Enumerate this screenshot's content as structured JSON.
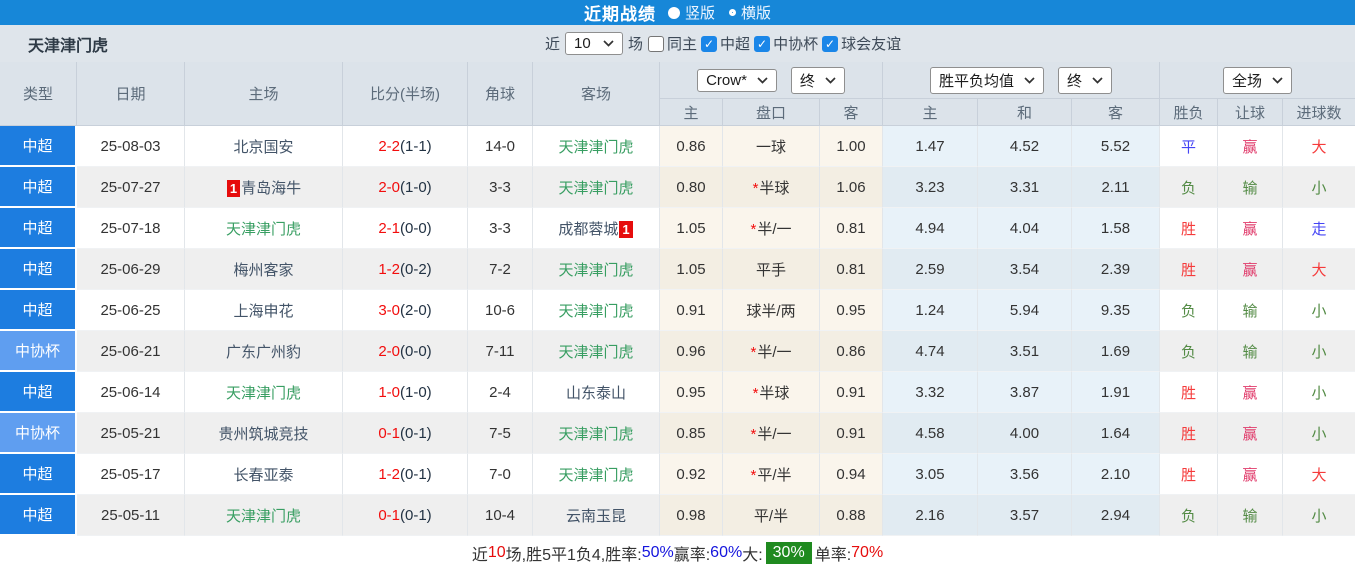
{
  "topbar": {
    "title": "近期战绩",
    "radios": [
      {
        "label": "竖版",
        "selected": true
      },
      {
        "label": "横版",
        "selected": false
      }
    ]
  },
  "filterbar": {
    "team_name": "天津津门虎",
    "recent_prefix": "近",
    "recent_value": "10",
    "recent_suffix": "场",
    "checkboxes": [
      {
        "label": "同主",
        "checked": false
      },
      {
        "label": "中超",
        "checked": true
      },
      {
        "label": "中协杯",
        "checked": true
      },
      {
        "label": "球会友谊",
        "checked": true
      }
    ]
  },
  "colors": {
    "topbar_blue": "#1787d8",
    "super_league_blue": "#1d7de0",
    "cup_blue": "#5f9ef0",
    "team_green": "#389e62",
    "score_red": "#f20d0d",
    "win_red": "#f53b3b",
    "win_crimson": "#e03a6a",
    "lose_green": "#538b45",
    "draw_blue": "#4545f5",
    "badge_green": "#1f8a1f"
  },
  "table": {
    "left_headers": [
      "类型",
      "日期",
      "主场",
      "比分(半场)",
      "角球",
      "客场"
    ],
    "odds_group": {
      "select1": "Crow*",
      "select2": "终",
      "subheaders": [
        "主",
        "盘口",
        "客"
      ]
    },
    "avg_group": {
      "select1": "胜平负均值",
      "select2": "终",
      "subheaders": [
        "主",
        "和",
        "客"
      ]
    },
    "result_group": {
      "select1": "全场",
      "subheaders": [
        "胜负",
        "让球",
        "进球数"
      ]
    },
    "rows": [
      {
        "type": "中超",
        "cup": false,
        "date": "25-08-03",
        "home": {
          "name": "北京国安",
          "green": false,
          "badge": null,
          "badge_pos": null
        },
        "score_ft": "2-2",
        "score_ht": "(1-1)",
        "corner": "14-0",
        "away": {
          "name": "天津津门虎",
          "green": true,
          "badge": null,
          "badge_pos": null
        },
        "odds_home": "0.86",
        "handicap": {
          "star": false,
          "text": "一球"
        },
        "odds_away": "1.00",
        "avg": [
          "1.47",
          "4.52",
          "5.52"
        ],
        "results": [
          {
            "text": "平",
            "color": "blue"
          },
          {
            "text": "赢",
            "color": "crimson"
          },
          {
            "text": "大",
            "color": "red"
          }
        ]
      },
      {
        "type": "中超",
        "cup": false,
        "date": "25-07-27",
        "home": {
          "name": "青岛海牛",
          "green": false,
          "badge": "1",
          "badge_pos": "left"
        },
        "score_ft": "2-0",
        "score_ht": "(1-0)",
        "corner": "3-3",
        "away": {
          "name": "天津津门虎",
          "green": true,
          "badge": null,
          "badge_pos": null
        },
        "odds_home": "0.80",
        "handicap": {
          "star": true,
          "text": "半球"
        },
        "odds_away": "1.06",
        "avg": [
          "3.23",
          "3.31",
          "2.11"
        ],
        "results": [
          {
            "text": "负",
            "color": "green"
          },
          {
            "text": "输",
            "color": "green"
          },
          {
            "text": "小",
            "color": "green"
          }
        ]
      },
      {
        "type": "中超",
        "cup": false,
        "date": "25-07-18",
        "home": {
          "name": "天津津门虎",
          "green": true,
          "badge": null,
          "badge_pos": null
        },
        "score_ft": "2-1",
        "score_ht": "(0-0)",
        "corner": "3-3",
        "away": {
          "name": "成都蓉城",
          "green": false,
          "badge": "1",
          "badge_pos": "right"
        },
        "odds_home": "1.05",
        "handicap": {
          "star": true,
          "text": "半/一"
        },
        "odds_away": "0.81",
        "avg": [
          "4.94",
          "4.04",
          "1.58"
        ],
        "results": [
          {
            "text": "胜",
            "color": "red"
          },
          {
            "text": "赢",
            "color": "crimson"
          },
          {
            "text": "走",
            "color": "blue"
          }
        ]
      },
      {
        "type": "中超",
        "cup": false,
        "date": "25-06-29",
        "home": {
          "name": "梅州客家",
          "green": false,
          "badge": null,
          "badge_pos": null
        },
        "score_ft": "1-2",
        "score_ht": "(0-2)",
        "corner": "7-2",
        "away": {
          "name": "天津津门虎",
          "green": true,
          "badge": null,
          "badge_pos": null
        },
        "odds_home": "1.05",
        "handicap": {
          "star": false,
          "text": "平手"
        },
        "odds_away": "0.81",
        "avg": [
          "2.59",
          "3.54",
          "2.39"
        ],
        "results": [
          {
            "text": "胜",
            "color": "red"
          },
          {
            "text": "赢",
            "color": "crimson"
          },
          {
            "text": "大",
            "color": "red"
          }
        ]
      },
      {
        "type": "中超",
        "cup": false,
        "date": "25-06-25",
        "home": {
          "name": "上海申花",
          "green": false,
          "badge": null,
          "badge_pos": null
        },
        "score_ft": "3-0",
        "score_ht": "(2-0)",
        "corner": "10-6",
        "away": {
          "name": "天津津门虎",
          "green": true,
          "badge": null,
          "badge_pos": null
        },
        "odds_home": "0.91",
        "handicap": {
          "star": false,
          "text": "球半/两"
        },
        "odds_away": "0.95",
        "avg": [
          "1.24",
          "5.94",
          "9.35"
        ],
        "results": [
          {
            "text": "负",
            "color": "green"
          },
          {
            "text": "输",
            "color": "green"
          },
          {
            "text": "小",
            "color": "green"
          }
        ]
      },
      {
        "type": "中协杯",
        "cup": true,
        "date": "25-06-21",
        "home": {
          "name": "广东广州豹",
          "green": false,
          "badge": null,
          "badge_pos": null
        },
        "score_ft": "2-0",
        "score_ht": "(0-0)",
        "corner": "7-11",
        "away": {
          "name": "天津津门虎",
          "green": true,
          "badge": null,
          "badge_pos": null
        },
        "odds_home": "0.96",
        "handicap": {
          "star": true,
          "text": "半/一"
        },
        "odds_away": "0.86",
        "avg": [
          "4.74",
          "3.51",
          "1.69"
        ],
        "results": [
          {
            "text": "负",
            "color": "green"
          },
          {
            "text": "输",
            "color": "green"
          },
          {
            "text": "小",
            "color": "green"
          }
        ]
      },
      {
        "type": "中超",
        "cup": false,
        "date": "25-06-14",
        "home": {
          "name": "天津津门虎",
          "green": true,
          "badge": null,
          "badge_pos": null
        },
        "score_ft": "1-0",
        "score_ht": "(1-0)",
        "corner": "2-4",
        "away": {
          "name": "山东泰山",
          "green": false,
          "badge": null,
          "badge_pos": null
        },
        "odds_home": "0.95",
        "handicap": {
          "star": true,
          "text": "半球"
        },
        "odds_away": "0.91",
        "avg": [
          "3.32",
          "3.87",
          "1.91"
        ],
        "results": [
          {
            "text": "胜",
            "color": "red"
          },
          {
            "text": "赢",
            "color": "crimson"
          },
          {
            "text": "小",
            "color": "green"
          }
        ]
      },
      {
        "type": "中协杯",
        "cup": true,
        "date": "25-05-21",
        "home": {
          "name": "贵州筑城竞技",
          "green": false,
          "badge": null,
          "badge_pos": null
        },
        "score_ft": "0-1",
        "score_ht": "(0-1)",
        "corner": "7-5",
        "away": {
          "name": "天津津门虎",
          "green": true,
          "badge": null,
          "badge_pos": null
        },
        "odds_home": "0.85",
        "handicap": {
          "star": true,
          "text": "半/一"
        },
        "odds_away": "0.91",
        "avg": [
          "4.58",
          "4.00",
          "1.64"
        ],
        "results": [
          {
            "text": "胜",
            "color": "red"
          },
          {
            "text": "赢",
            "color": "crimson"
          },
          {
            "text": "小",
            "color": "green"
          }
        ]
      },
      {
        "type": "中超",
        "cup": false,
        "date": "25-05-17",
        "home": {
          "name": "长春亚泰",
          "green": false,
          "badge": null,
          "badge_pos": null
        },
        "score_ft": "1-2",
        "score_ht": "(0-1)",
        "corner": "7-0",
        "away": {
          "name": "天津津门虎",
          "green": true,
          "badge": null,
          "badge_pos": null
        },
        "odds_home": "0.92",
        "handicap": {
          "star": true,
          "text": "平/半"
        },
        "odds_away": "0.94",
        "avg": [
          "3.05",
          "3.56",
          "2.10"
        ],
        "results": [
          {
            "text": "胜",
            "color": "red"
          },
          {
            "text": "赢",
            "color": "crimson"
          },
          {
            "text": "大",
            "color": "red"
          }
        ]
      },
      {
        "type": "中超",
        "cup": false,
        "date": "25-05-11",
        "home": {
          "name": "天津津门虎",
          "green": true,
          "badge": null,
          "badge_pos": null
        },
        "score_ft": "0-1",
        "score_ht": "(0-1)",
        "corner": "10-4",
        "away": {
          "name": "云南玉昆",
          "green": false,
          "badge": null,
          "badge_pos": null
        },
        "odds_home": "0.98",
        "handicap": {
          "star": false,
          "text": "平/半"
        },
        "odds_away": "0.88",
        "avg": [
          "2.16",
          "3.57",
          "2.94"
        ],
        "results": [
          {
            "text": "负",
            "color": "green"
          },
          {
            "text": "输",
            "color": "green"
          },
          {
            "text": "小",
            "color": "green"
          }
        ]
      }
    ]
  },
  "footer": {
    "segments": [
      {
        "text": "近",
        "style": "plain"
      },
      {
        "text": "10",
        "style": "red"
      },
      {
        "text": "场,胜5平1负4, ",
        "style": "plain"
      },
      {
        "text": "胜率:",
        "style": "plain"
      },
      {
        "text": "50%",
        "style": "blue"
      },
      {
        "text": " 赢率:",
        "style": "plain"
      },
      {
        "text": "60%",
        "style": "blue"
      },
      {
        "text": " 大:",
        "style": "plain"
      },
      {
        "text": "30%",
        "style": "badge"
      },
      {
        "text": " 单率:",
        "style": "plain"
      },
      {
        "text": "70%",
        "style": "red"
      }
    ]
  }
}
